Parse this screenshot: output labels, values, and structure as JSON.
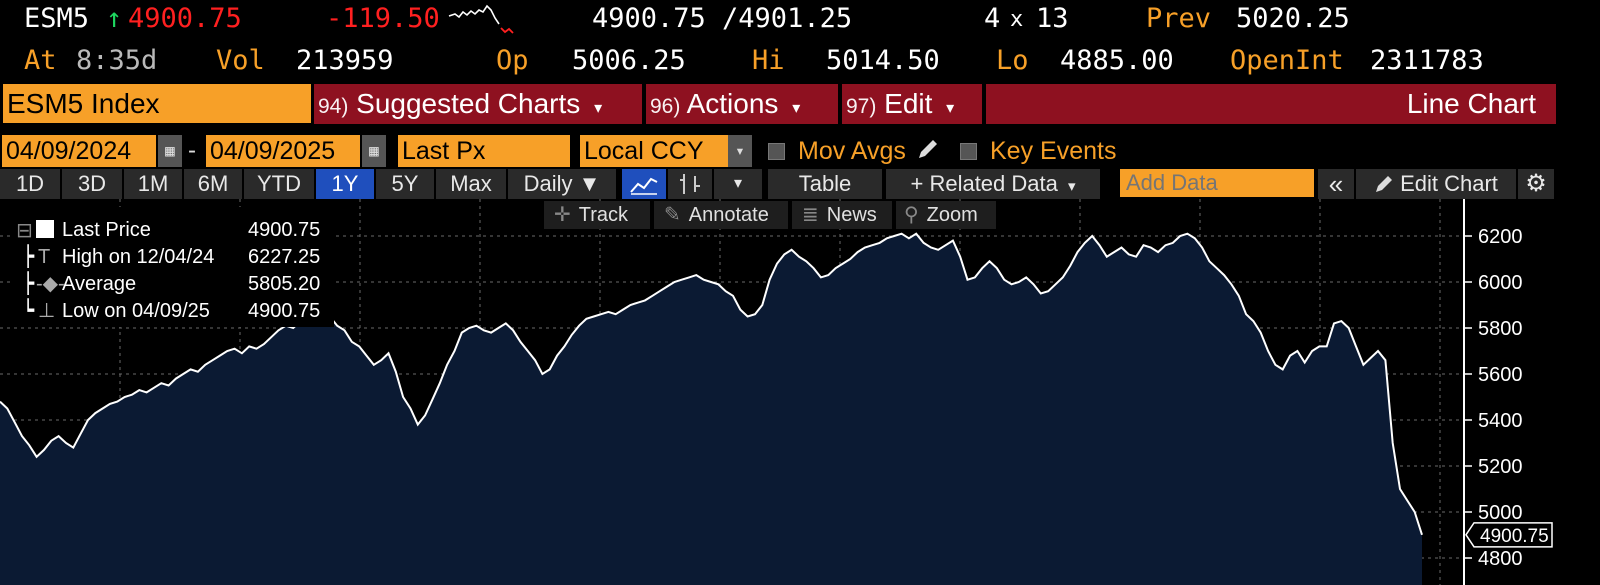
{
  "quote": {
    "ticker": "ESM5",
    "arrow": "↑",
    "last": "4900.75",
    "change": "-119.50",
    "bid_ask": "4900.75 /4901.25",
    "size_a": "4",
    "size_x": "x",
    "size_b": "13",
    "prev_label": "Prev",
    "prev": "5020.25",
    "at_label": "At",
    "time": "8:35d",
    "vol_label": "Vol",
    "vol": "213959",
    "op_label": "Op",
    "op": "5006.25",
    "hi_label": "Hi",
    "hi": "5014.50",
    "lo_label": "Lo",
    "lo": "4885.00",
    "oi_label": "OpenInt",
    "oi": "2311783"
  },
  "menubar": {
    "security": "ESM5 Index",
    "suggested_num": "94)",
    "suggested": "Suggested Charts",
    "actions_num": "96)",
    "actions": "Actions",
    "edit_num": "97)",
    "edit": "Edit",
    "chart_type": "Line Chart",
    "caret": "▾"
  },
  "inputs": {
    "start_date": "04/09/2024",
    "dash": "-",
    "end_date": "04/09/2025",
    "field": "Last Px",
    "currency": "Local CCY",
    "mov_avgs": "Mov Avgs",
    "key_events": "Key Events"
  },
  "toolbar": {
    "periods": [
      "1D",
      "3D",
      "1M",
      "6M",
      "YTD",
      "1Y",
      "5Y",
      "Max"
    ],
    "selected_period": "1Y",
    "frequency": "Daily ▼",
    "table": "Table",
    "related": "+ Related Data",
    "related_caret": "▾",
    "add_data_placeholder": "Add Data",
    "collapse": "«",
    "edit_chart": "Edit Chart"
  },
  "chart_tools": {
    "track": "Track",
    "annotate": "Annotate",
    "news": "News",
    "zoom": "Zoom"
  },
  "legend": {
    "last_label": "Last Price",
    "last_value": "4900.75",
    "high_label": "High on 12/04/24",
    "high_value": "6227.25",
    "avg_label": "Average",
    "avg_value": "5805.20",
    "low_label": "Low on 04/09/25",
    "low_value": "4900.75"
  },
  "chart_data": {
    "type": "area",
    "series": [
      {
        "name": "Last Price",
        "values": [
          5480,
          5450,
          5390,
          5330,
          5290,
          5240,
          5270,
          5310,
          5330,
          5300,
          5280,
          5340,
          5400,
          5430,
          5450,
          5470,
          5480,
          5500,
          5510,
          5530,
          5520,
          5540,
          5560,
          5550,
          5580,
          5600,
          5620,
          5610,
          5640,
          5660,
          5680,
          5700,
          5710,
          5690,
          5720,
          5710,
          5730,
          5760,
          5790,
          5810,
          5800,
          5830,
          5850,
          5870,
          5880,
          5850,
          5810,
          5790,
          5740,
          5720,
          5680,
          5640,
          5660,
          5690,
          5610,
          5500,
          5450,
          5380,
          5420,
          5490,
          5560,
          5640,
          5700,
          5780,
          5800,
          5810,
          5790,
          5780,
          5800,
          5820,
          5790,
          5740,
          5700,
          5660,
          5600,
          5620,
          5680,
          5720,
          5770,
          5810,
          5840,
          5850,
          5860,
          5870,
          5860,
          5880,
          5900,
          5910,
          5920,
          5940,
          5960,
          5980,
          6000,
          6010,
          6020,
          6030,
          6010,
          6000,
          5990,
          5960,
          5940,
          5880,
          5850,
          5860,
          5900,
          6010,
          6080,
          6120,
          6140,
          6110,
          6090,
          6060,
          6020,
          6030,
          6060,
          6080,
          6100,
          6130,
          6150,
          6160,
          6170,
          6190,
          6200,
          6210,
          6190,
          6210,
          6170,
          6150,
          6140,
          6160,
          6180,
          6110,
          6010,
          6020,
          6060,
          6090,
          6060,
          6010,
          5990,
          6000,
          6020,
          5990,
          5950,
          5960,
          5990,
          6020,
          6070,
          6130,
          6170,
          6200,
          6160,
          6110,
          6130,
          6150,
          6120,
          6110,
          6160,
          6150,
          6130,
          6160,
          6170,
          6200,
          6210,
          6190,
          6150,
          6090,
          6060,
          6030,
          5990,
          5940,
          5860,
          5830,
          5780,
          5700,
          5640,
          5620,
          5680,
          5700,
          5650,
          5700,
          5720,
          5720,
          5820,
          5830,
          5800,
          5720,
          5640,
          5670,
          5700,
          5660,
          5300,
          5100,
          5050,
          5000,
          4900.75
        ]
      }
    ],
    "ylim": [
      4800,
      6300
    ],
    "yticks": [
      "4800",
      "5000",
      "5200",
      "5400",
      "5600",
      "5800",
      "6000",
      "6200"
    ],
    "last_tag": "4900.75",
    "grid": true,
    "fill_color": "#0b1a33",
    "line_color": "#ffffff"
  },
  "colors": {
    "amber": "#f7a028",
    "red": "#ff2020",
    "green": "#1ed760",
    "menubar_red": "#8e1120",
    "select_blue": "#1f4fbd"
  }
}
